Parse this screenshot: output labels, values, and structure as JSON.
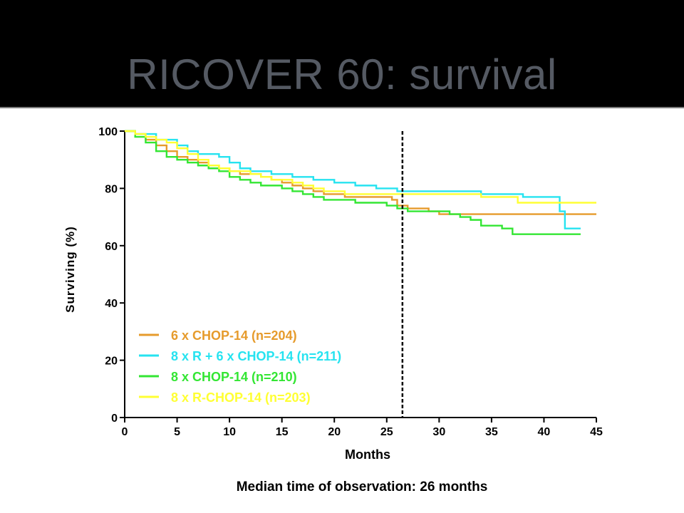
{
  "slide": {
    "title": "RICOVER 60: survival",
    "footnote": "Median time of observation: 26 months"
  },
  "colors": {
    "background": "#000000",
    "title": "#555a63",
    "panel": "#ffffff"
  },
  "chart_data": {
    "type": "line",
    "step": true,
    "title": "",
    "xlabel": "Months",
    "ylabel": "Surviving (%)",
    "xlim": [
      0,
      45
    ],
    "ylim": [
      0,
      100
    ],
    "xticks": [
      "0",
      "5",
      "10",
      "15",
      "20",
      "25",
      "30",
      "35",
      "40",
      "45"
    ],
    "yticks": [
      "0",
      "20",
      "40",
      "60",
      "80",
      "100"
    ],
    "grid": false,
    "legend_position": "lower-left",
    "median_line": {
      "x": 26.5,
      "style": "dashed"
    },
    "series": [
      {
        "name": "6 x CHOP-14 (n=204)",
        "color": "#e69b2c",
        "points": [
          [
            0,
            100
          ],
          [
            1,
            99
          ],
          [
            2,
            97
          ],
          [
            3,
            95
          ],
          [
            4,
            93
          ],
          [
            5,
            91
          ],
          [
            6,
            90
          ],
          [
            7,
            89
          ],
          [
            8,
            88
          ],
          [
            9,
            87
          ],
          [
            10,
            86
          ],
          [
            11,
            85
          ],
          [
            13,
            84
          ],
          [
            14,
            83
          ],
          [
            15,
            82
          ],
          [
            16,
            81
          ],
          [
            17,
            80
          ],
          [
            18,
            79
          ],
          [
            19,
            78
          ],
          [
            20,
            78
          ],
          [
            21,
            77
          ],
          [
            23,
            77
          ],
          [
            24,
            77
          ],
          [
            25,
            77
          ],
          [
            25.5,
            76
          ],
          [
            26,
            74
          ],
          [
            27,
            73
          ],
          [
            28,
            73
          ],
          [
            29,
            72
          ],
          [
            30,
            71
          ],
          [
            33,
            71
          ],
          [
            36,
            71
          ],
          [
            40,
            71
          ],
          [
            45,
            71
          ]
        ]
      },
      {
        "name": "8 x R + 6 x CHOP-14 (n=211)",
        "color": "#26e3f0",
        "points": [
          [
            0,
            100
          ],
          [
            1,
            99
          ],
          [
            3,
            97
          ],
          [
            5,
            95
          ],
          [
            6,
            93
          ],
          [
            7,
            92
          ],
          [
            8,
            92
          ],
          [
            9,
            91
          ],
          [
            10,
            89
          ],
          [
            11,
            87
          ],
          [
            12,
            86
          ],
          [
            14,
            85
          ],
          [
            16,
            84
          ],
          [
            18,
            83
          ],
          [
            20,
            82
          ],
          [
            22,
            81
          ],
          [
            24,
            80
          ],
          [
            26,
            79
          ],
          [
            30,
            79
          ],
          [
            33,
            79
          ],
          [
            34,
            78
          ],
          [
            36,
            78
          ],
          [
            37,
            78
          ],
          [
            38,
            77
          ],
          [
            41,
            77
          ],
          [
            41.5,
            72
          ],
          [
            42,
            66
          ],
          [
            43.5,
            66
          ]
        ]
      },
      {
        "name": "8 x CHOP-14 (n=210)",
        "color": "#33e633",
        "points": [
          [
            0,
            100
          ],
          [
            1,
            98
          ],
          [
            2,
            96
          ],
          [
            3,
            93
          ],
          [
            4,
            91
          ],
          [
            5,
            90
          ],
          [
            6,
            89
          ],
          [
            7,
            88
          ],
          [
            8,
            87
          ],
          [
            9,
            86
          ],
          [
            10,
            84
          ],
          [
            11,
            83
          ],
          [
            12,
            82
          ],
          [
            13,
            81
          ],
          [
            15,
            80
          ],
          [
            16,
            79
          ],
          [
            17,
            78
          ],
          [
            18,
            77
          ],
          [
            19,
            76
          ],
          [
            21,
            76
          ],
          [
            22,
            75
          ],
          [
            24,
            75
          ],
          [
            25,
            74
          ],
          [
            26,
            73
          ],
          [
            27,
            72
          ],
          [
            29,
            72
          ],
          [
            31,
            71
          ],
          [
            32,
            70
          ],
          [
            33,
            69
          ],
          [
            34,
            67
          ],
          [
            36,
            66
          ],
          [
            37,
            64
          ],
          [
            40,
            64
          ],
          [
            43.5,
            64
          ]
        ]
      },
      {
        "name": "8 x R-CHOP-14 (n=203)",
        "color": "#ffff33",
        "points": [
          [
            0,
            100
          ],
          [
            1,
            99
          ],
          [
            2,
            98
          ],
          [
            3,
            97
          ],
          [
            4,
            96
          ],
          [
            5,
            94
          ],
          [
            6,
            92
          ],
          [
            7,
            90
          ],
          [
            8,
            88
          ],
          [
            9,
            87
          ],
          [
            10,
            86
          ],
          [
            12,
            85
          ],
          [
            13,
            84
          ],
          [
            14,
            83
          ],
          [
            16,
            82
          ],
          [
            17,
            81
          ],
          [
            18,
            80
          ],
          [
            19,
            79
          ],
          [
            20,
            79
          ],
          [
            21,
            78
          ],
          [
            24,
            78
          ],
          [
            27,
            78
          ],
          [
            30,
            78
          ],
          [
            33,
            78
          ],
          [
            34,
            77
          ],
          [
            37,
            77
          ],
          [
            37.5,
            75
          ],
          [
            40,
            75
          ],
          [
            45,
            75
          ]
        ]
      }
    ]
  }
}
